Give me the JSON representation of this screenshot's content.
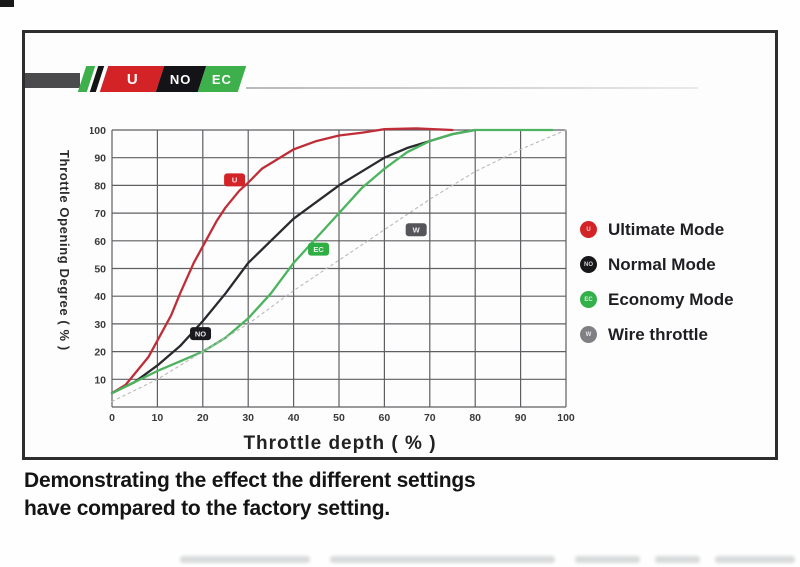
{
  "logo": {
    "badges": [
      {
        "label": "U",
        "color": "#d42327"
      },
      {
        "label": "NO",
        "color": "#141418"
      },
      {
        "label": "EC",
        "color": "#3db04c"
      }
    ]
  },
  "chart_data": {
    "type": "line",
    "title": "",
    "xlabel": "Throttle depth ( % )",
    "ylabel": "Throttle Opening Degree ( % )",
    "xlim": [
      0,
      100
    ],
    "ylim": [
      0,
      100
    ],
    "grid": true,
    "legend_position": "right-outside",
    "x_ticks": [
      0,
      10,
      20,
      30,
      40,
      50,
      60,
      70,
      80,
      90,
      100
    ],
    "y_ticks": [
      10,
      20,
      30,
      40,
      50,
      60,
      70,
      80,
      90,
      100
    ],
    "series": [
      {
        "name": "Ultimate Mode",
        "badge": "U",
        "badge_pos": [
          27,
          82
        ],
        "color": "#bf2e38",
        "badge_color": "#d42327",
        "dashed": false,
        "points": [
          [
            0,
            5
          ],
          [
            3,
            8
          ],
          [
            5,
            12
          ],
          [
            8,
            18
          ],
          [
            10,
            24
          ],
          [
            13,
            33
          ],
          [
            15,
            41
          ],
          [
            18,
            52
          ],
          [
            20,
            58
          ],
          [
            23,
            67
          ],
          [
            25,
            72
          ],
          [
            28,
            78
          ],
          [
            30,
            81
          ],
          [
            33,
            86
          ],
          [
            35,
            88
          ],
          [
            40,
            93
          ],
          [
            45,
            96
          ],
          [
            50,
            98
          ],
          [
            55,
            99
          ],
          [
            60,
            100.3
          ],
          [
            67,
            100.6
          ],
          [
            75,
            100
          ]
        ]
      },
      {
        "name": "Normal Mode",
        "badge": "NO",
        "badge_pos": [
          19.5,
          26.5
        ],
        "color": "#29292e",
        "badge_color": "#1b1b1f",
        "dashed": false,
        "points": [
          [
            0,
            5
          ],
          [
            5,
            9
          ],
          [
            10,
            15
          ],
          [
            15,
            22
          ],
          [
            20,
            31
          ],
          [
            25,
            41
          ],
          [
            30,
            52
          ],
          [
            35,
            60
          ],
          [
            40,
            68
          ],
          [
            45,
            74
          ],
          [
            50,
            80
          ],
          [
            55,
            85
          ],
          [
            60,
            90
          ],
          [
            65,
            93.5
          ],
          [
            70,
            96
          ],
          [
            75,
            98.5
          ],
          [
            80,
            100
          ]
        ]
      },
      {
        "name": "Economy Mode",
        "badge": "EC",
        "badge_pos": [
          45.5,
          57
        ],
        "color": "#4cb45f",
        "badge_color": "#2fae44",
        "dashed": false,
        "points": [
          [
            0,
            5
          ],
          [
            5,
            9
          ],
          [
            10,
            13
          ],
          [
            15,
            16.5
          ],
          [
            20,
            20
          ],
          [
            25,
            25
          ],
          [
            30,
            32
          ],
          [
            35,
            41
          ],
          [
            40,
            52
          ],
          [
            45,
            61
          ],
          [
            50,
            70
          ],
          [
            55,
            79
          ],
          [
            60,
            86
          ],
          [
            65,
            92
          ],
          [
            70,
            96
          ],
          [
            75,
            98.5
          ],
          [
            80,
            100
          ],
          [
            97,
            100
          ]
        ]
      },
      {
        "name": "Wire throttle",
        "badge": "W",
        "badge_pos": [
          67,
          64
        ],
        "color": "#b9b9b9",
        "badge_color": "#55555a",
        "dashed": true,
        "points": [
          [
            0,
            2
          ],
          [
            10,
            10
          ],
          [
            20,
            20
          ],
          [
            30,
            30
          ],
          [
            40,
            42
          ],
          [
            50,
            53
          ],
          [
            60,
            64
          ],
          [
            70,
            75
          ],
          [
            80,
            85
          ],
          [
            90,
            93
          ],
          [
            100,
            100
          ]
        ]
      }
    ]
  },
  "legend": {
    "items": [
      {
        "label": "Ultimate Mode",
        "badge": "U",
        "color": "#d42327"
      },
      {
        "label": "Normal Mode",
        "badge": "NO",
        "color": "#17171a"
      },
      {
        "label": "Economy Mode",
        "badge": "EC",
        "color": "#33b04a"
      },
      {
        "label": "Wire throttle",
        "badge": "W",
        "color": "#808084"
      }
    ]
  },
  "caption": {
    "line1": "Demonstrating the effect the different settings",
    "line2": "have compared to the factory setting."
  }
}
